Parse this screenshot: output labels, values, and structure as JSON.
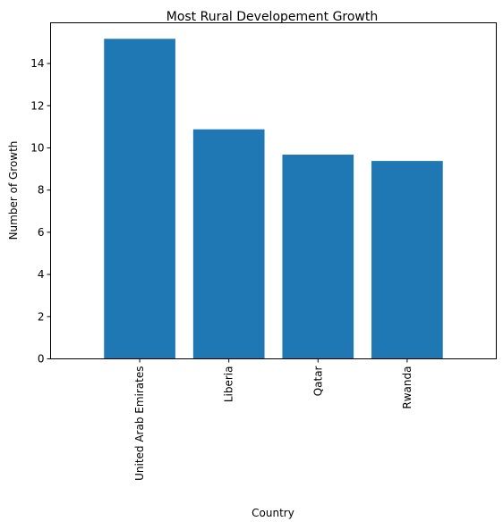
{
  "chart_data": {
    "type": "bar",
    "title": "Most Rural Developement Growth",
    "xlabel": "Country",
    "ylabel": "Number of Growth",
    "categories": [
      "United Arab Emirates",
      "Liberia",
      "Qatar",
      "Rwanda"
    ],
    "values": [
      15.17,
      10.88,
      9.68,
      9.38
    ],
    "ylim": [
      0,
      15.93
    ],
    "yticks": [
      "0",
      "2",
      "4",
      "6",
      "8",
      "10",
      "12",
      "14"
    ],
    "grid": false,
    "bar_color": "#1f77b4"
  }
}
